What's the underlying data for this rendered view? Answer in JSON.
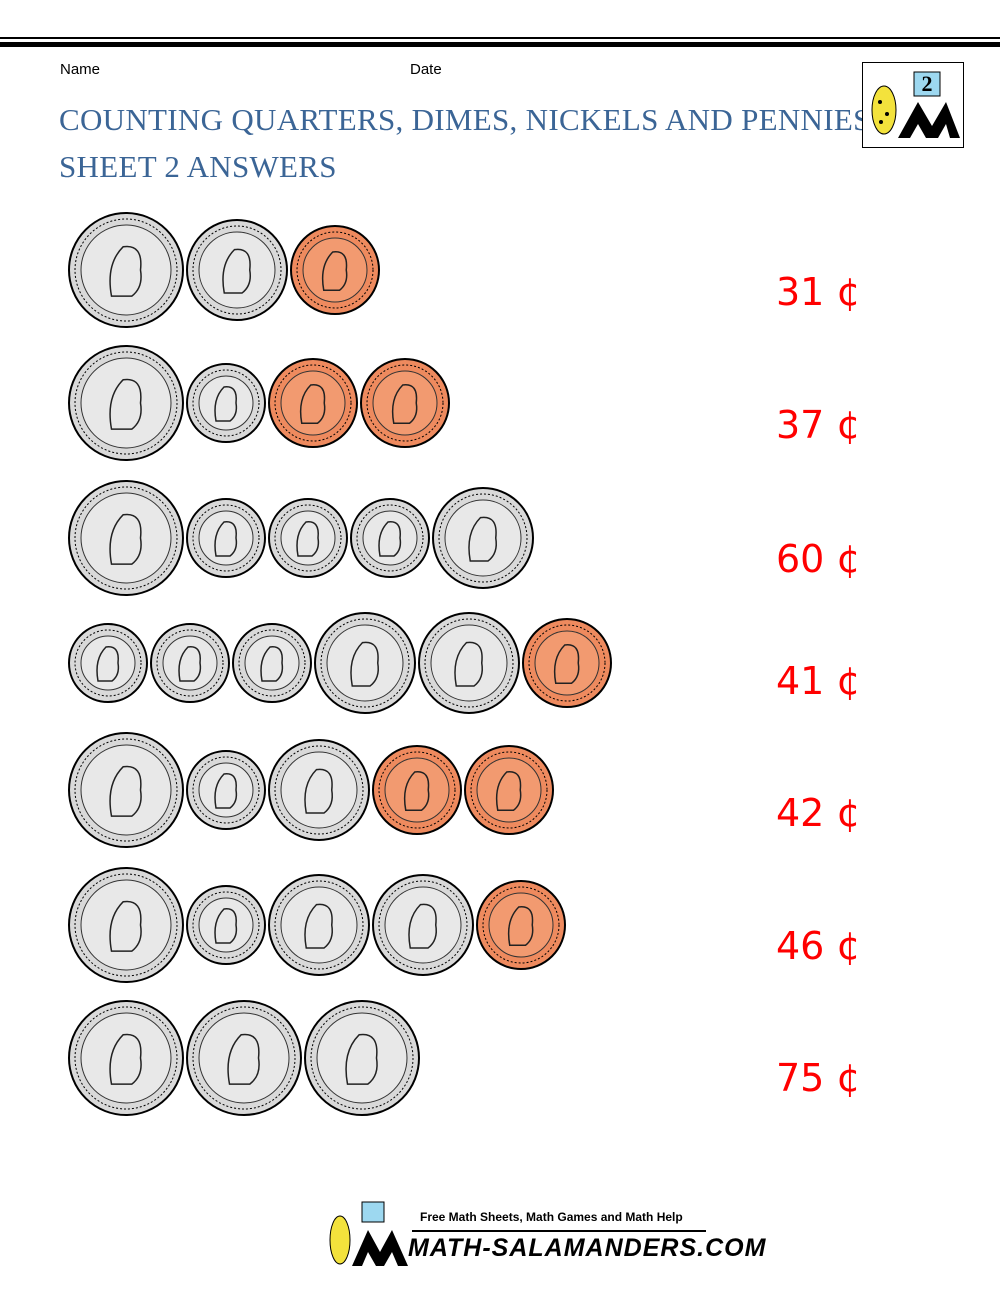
{
  "header": {
    "name_label": "Name",
    "date_label": "Date",
    "title_line1": "COUNTING QUARTERS, DIMES, NICKELS AND PENNIES",
    "title_line2": "SHEET 2 ANSWERS",
    "logo_number": "2"
  },
  "rows": [
    {
      "answer": "31 ¢"
    },
    {
      "answer": "37 ¢"
    },
    {
      "answer": "60 ¢"
    },
    {
      "answer": "41 ¢"
    },
    {
      "answer": "42 ¢"
    },
    {
      "answer": "46 ¢"
    },
    {
      "answer": "75 ¢"
    }
  ],
  "footer": {
    "tagline": "Free Math Sheets, Math Games and Math Help",
    "site": "MATH-SALAMANDERS.COM"
  }
}
